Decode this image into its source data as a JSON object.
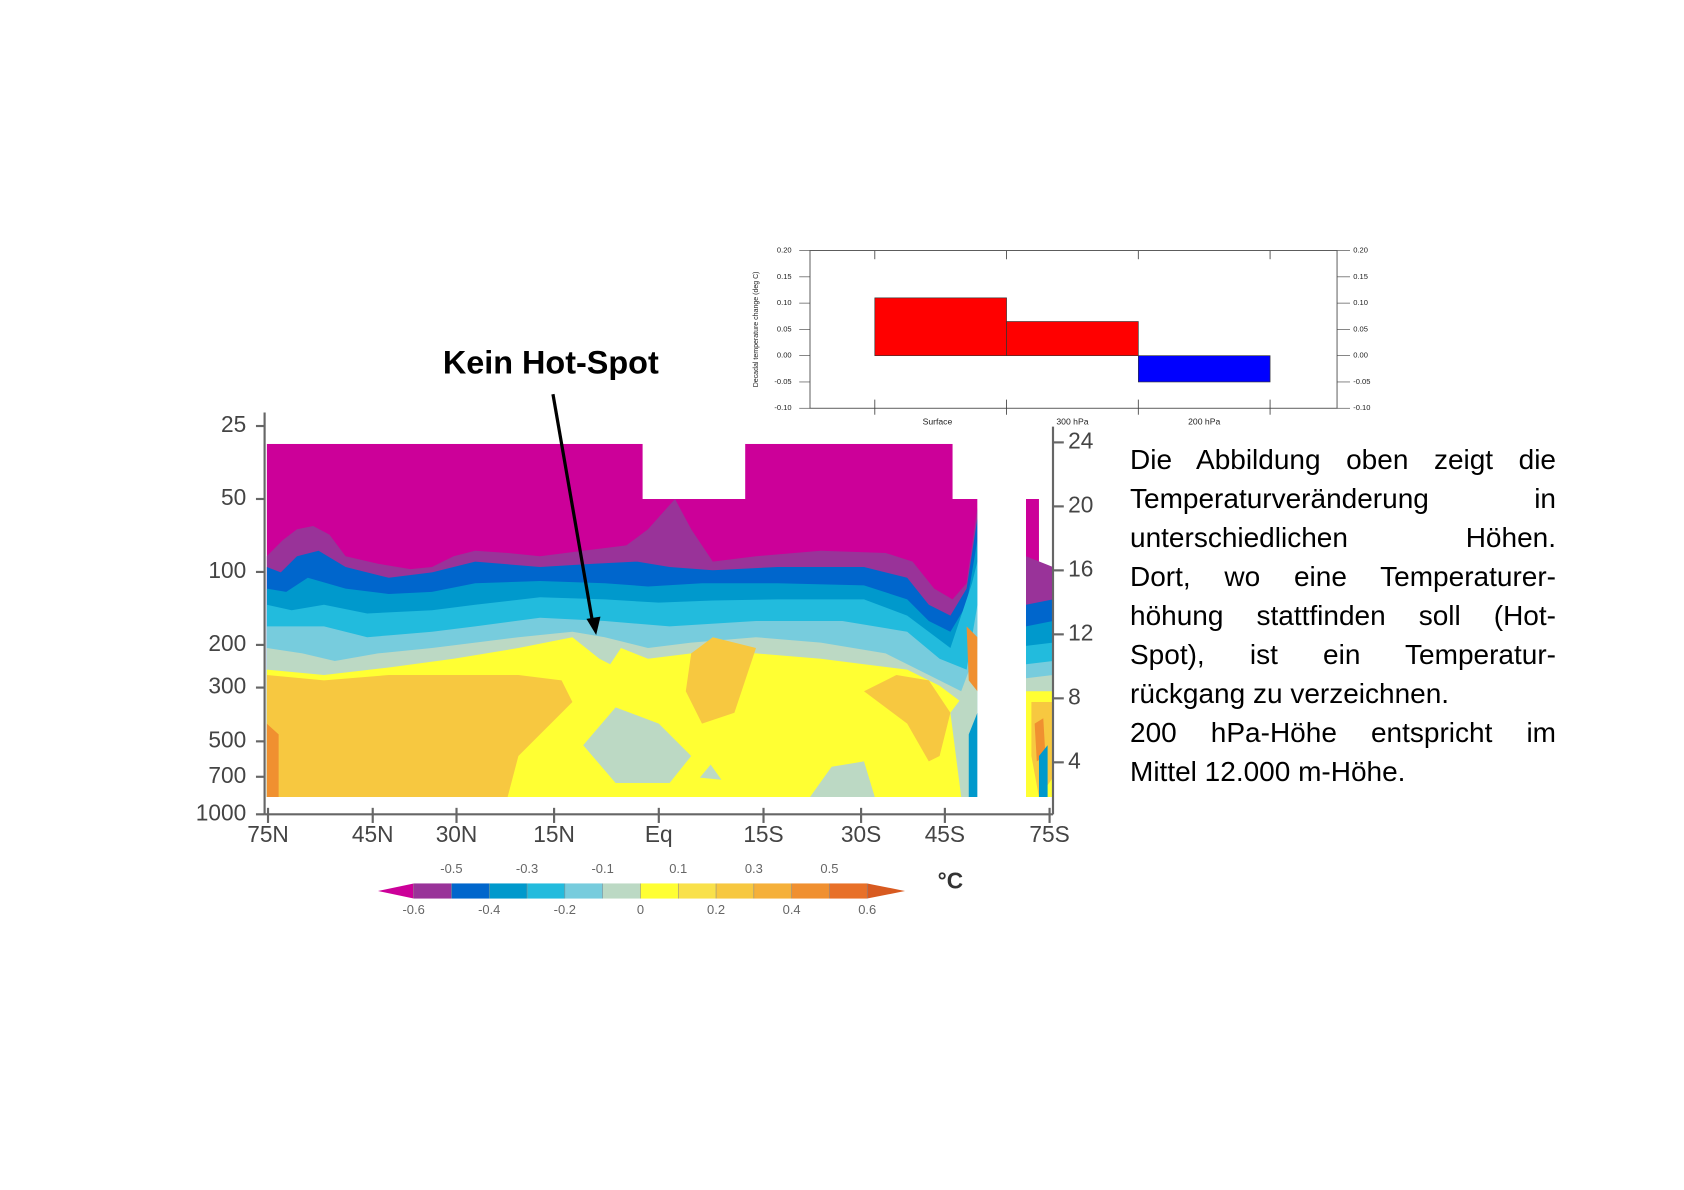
{
  "annotation": "Kein Hot-Spot",
  "chart_data": [
    {
      "type": "bar",
      "ylabel": "Decadal temperature change (deg C)",
      "categories": [
        "Surface",
        "300 hPa",
        "200 hPa"
      ],
      "values": [
        0.11,
        0.065,
        -0.05
      ],
      "colors": [
        "#ff0000",
        "#ff0000",
        "#0000ff"
      ],
      "ylim": [
        -0.1,
        0.2
      ],
      "yticks": [
        {
          "value": -0.1,
          "label": "-0.10"
        },
        {
          "value": -0.05,
          "label": "-0.05"
        },
        {
          "value": 0,
          "label": "0.00"
        },
        {
          "value": 0.05,
          "label": "0.05"
        },
        {
          "value": 0.1,
          "label": "0.10"
        },
        {
          "value": 0.15,
          "label": "0.15"
        },
        {
          "value": 0.2,
          "label": "0.20"
        }
      ],
      "y2lim": [
        -0.1,
        0.2
      ],
      "y2ticks": [
        {
          "value": -0.1,
          "label": "-0.10"
        },
        {
          "value": -0.05,
          "label": "-0.05"
        },
        {
          "value": 0,
          "label": "0.00"
        },
        {
          "value": 0.05,
          "label": "0.05"
        },
        {
          "value": 0.1,
          "label": "0.10"
        },
        {
          "value": 0.15,
          "label": "0.15"
        },
        {
          "value": 0.2,
          "label": "0.20"
        }
      ]
    },
    {
      "type": "contour",
      "ylog": true,
      "ylim": [
        1000,
        22
      ],
      "yticks": [
        25,
        50,
        100,
        200,
        300,
        500,
        700,
        1000
      ],
      "y2lim": [
        0.75,
        26
      ],
      "y2ticks": [
        4,
        8,
        12,
        16,
        20,
        24
      ],
      "xscale": "sine",
      "xlim": [
        77,
        -77
      ],
      "xticks": [
        {
          "value": 75,
          "label": "75N"
        },
        {
          "value": 45,
          "label": "45N"
        },
        {
          "value": 30,
          "label": "30N"
        },
        {
          "value": 15,
          "label": "15N"
        },
        {
          "value": 0,
          "label": "Eq"
        },
        {
          "value": -15,
          "label": "15S"
        },
        {
          "value": -30,
          "label": "30S"
        },
        {
          "value": -45,
          "label": "45S"
        },
        {
          "value": -75,
          "label": "75S"
        }
      ],
      "colorbar": {
        "clim": [
          -0.6,
          0.6
        ],
        "ticks": [
          -0.6,
          -0.5,
          -0.4,
          -0.3,
          -0.2,
          -0.1,
          0,
          0.1,
          0.2,
          0.3,
          0.4,
          0.5,
          0.6
        ],
        "colors": [
          "#cc0099",
          "#993399",
          "#0066cc",
          "#0099cc",
          "#22bbdd",
          "#77ccdd",
          "#bcd9c4",
          "#ffff33",
          "#f9e14a",
          "#f7c840",
          "#f5b03a",
          "#f09030",
          "#e87028",
          "#d85a20"
        ],
        "unit": "°C"
      }
    }
  ],
  "text": {
    "paragraphs": [
      [
        "Die Abbildung oben zeigt die",
        "Temperaturveränderung in",
        "unterschiedlichen Höhen.",
        "Dort, wo eine Temperaturer-",
        "höhung stattfinden soll (Hot-",
        "Spot), ist ein Temperatur-",
        "rückgang zu verzeichnen."
      ],
      [
        "200 hPa-Höhe entspricht im",
        "Mittel 12.000 m-Höhe."
      ]
    ]
  }
}
